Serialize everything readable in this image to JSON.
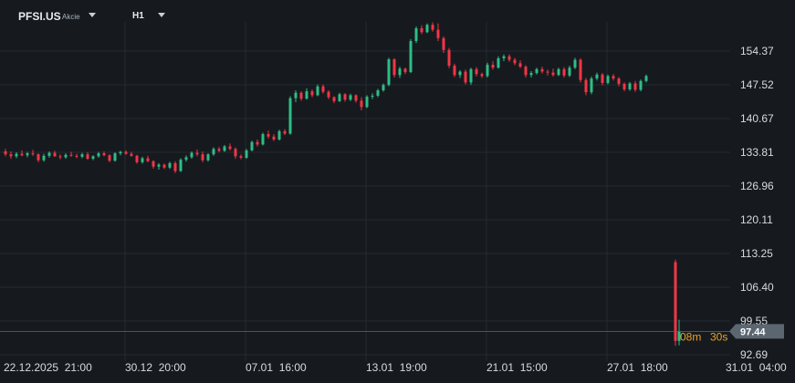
{
  "header": {
    "symbol": "PFSI.US",
    "instrument_type": "Akcie",
    "timeframe": "H1"
  },
  "countdown": {
    "minutes": "08m",
    "seconds": "30s"
  },
  "colors": {
    "background": "#161a1f",
    "grid": "#232a32",
    "up": "#2ebd85",
    "down": "#f23645",
    "text": "#d7dbe0",
    "price_tag": "#5b6670",
    "countdown": "#f0a020"
  },
  "chart_data": {
    "type": "candlestick",
    "title": "",
    "xlabel": "",
    "ylabel": "",
    "y_ticks": [
      "154.37",
      "147.52",
      "140.67",
      "133.81",
      "126.96",
      "120.11",
      "113.25",
      "106.40",
      "99.55",
      "92.69"
    ],
    "y_tick_values": [
      154.37,
      147.52,
      140.67,
      133.81,
      126.96,
      120.11,
      113.25,
      106.4,
      99.55,
      92.69
    ],
    "x_ticks": [
      "22.12.2025  21:00",
      "30.12  20:00",
      "07.01  16:00",
      "13.01  19:00",
      "21.01  15:00",
      "27.01  18:00",
      "31.01  04:00"
    ],
    "current_price": "97.44",
    "current_price_value": 97.44,
    "grid": true,
    "candles": [
      [
        134.0,
        134.5,
        133.0,
        133.4
      ],
      [
        133.4,
        134.0,
        132.5,
        133.0
      ],
      [
        133.0,
        133.8,
        132.6,
        133.5
      ],
      [
        133.5,
        134.2,
        133.0,
        133.2
      ],
      [
        133.2,
        133.9,
        132.8,
        133.6
      ],
      [
        133.6,
        134.3,
        133.1,
        133.4
      ],
      [
        133.4,
        133.6,
        131.8,
        132.2
      ],
      [
        132.2,
        133.5,
        131.9,
        133.1
      ],
      [
        133.1,
        134.0,
        132.7,
        133.7
      ],
      [
        133.7,
        134.1,
        132.9,
        133.0
      ],
      [
        133.0,
        133.4,
        132.4,
        132.8
      ],
      [
        132.8,
        133.6,
        132.5,
        133.3
      ],
      [
        133.3,
        133.9,
        132.9,
        133.1
      ],
      [
        133.1,
        133.5,
        132.6,
        132.9
      ],
      [
        132.9,
        133.7,
        132.6,
        133.4
      ],
      [
        133.4,
        133.8,
        132.3,
        132.5
      ],
      [
        132.5,
        133.2,
        132.2,
        133.0
      ],
      [
        133.0,
        133.9,
        132.7,
        133.6
      ],
      [
        133.6,
        134.0,
        133.0,
        133.2
      ],
      [
        133.2,
        133.4,
        131.8,
        132.1
      ],
      [
        132.1,
        133.8,
        131.9,
        133.6
      ],
      [
        133.6,
        134.1,
        133.2,
        133.9
      ],
      [
        133.9,
        134.2,
        133.3,
        133.5
      ],
      [
        133.5,
        133.9,
        132.9,
        133.1
      ],
      [
        133.1,
        133.3,
        131.5,
        131.8
      ],
      [
        131.8,
        132.9,
        131.5,
        132.6
      ],
      [
        132.6,
        133.1,
        131.8,
        132.0
      ],
      [
        132.0,
        132.2,
        130.5,
        130.9
      ],
      [
        130.9,
        131.6,
        130.3,
        131.3
      ],
      [
        131.3,
        131.5,
        130.4,
        130.7
      ],
      [
        130.7,
        131.9,
        130.4,
        131.6
      ],
      [
        131.6,
        132.0,
        129.6,
        130.0
      ],
      [
        130.0,
        132.6,
        129.8,
        132.3
      ],
      [
        132.3,
        133.2,
        131.9,
        132.8
      ],
      [
        132.8,
        134.0,
        132.5,
        133.7
      ],
      [
        133.7,
        134.4,
        133.0,
        133.4
      ],
      [
        133.4,
        134.0,
        131.8,
        132.2
      ],
      [
        132.2,
        133.6,
        131.9,
        133.4
      ],
      [
        133.4,
        134.8,
        133.1,
        134.5
      ],
      [
        134.5,
        134.9,
        133.8,
        134.1
      ],
      [
        134.1,
        135.3,
        133.9,
        135.0
      ],
      [
        135.0,
        135.6,
        134.2,
        134.5
      ],
      [
        134.5,
        134.8,
        132.5,
        133.0
      ],
      [
        133.0,
        133.4,
        132.4,
        132.7
      ],
      [
        132.7,
        134.5,
        132.5,
        134.2
      ],
      [
        134.2,
        136.2,
        134.0,
        135.9
      ],
      [
        135.9,
        136.4,
        135.0,
        135.4
      ],
      [
        135.4,
        137.8,
        135.2,
        137.5
      ],
      [
        137.5,
        138.2,
        136.6,
        137.0
      ],
      [
        137.0,
        137.5,
        136.1,
        136.4
      ],
      [
        136.4,
        138.4,
        136.2,
        138.1
      ],
      [
        138.1,
        138.5,
        137.3,
        137.6
      ],
      [
        137.6,
        145.2,
        137.4,
        144.8
      ],
      [
        144.8,
        146.4,
        144.0,
        145.9
      ],
      [
        145.9,
        146.2,
        144.3,
        144.7
      ],
      [
        144.7,
        146.8,
        144.5,
        146.2
      ],
      [
        146.2,
        146.6,
        145.0,
        145.4
      ],
      [
        145.4,
        147.6,
        145.2,
        147.2
      ],
      [
        147.2,
        147.6,
        145.7,
        146.1
      ],
      [
        146.1,
        146.4,
        144.6,
        145.0
      ],
      [
        145.0,
        145.2,
        143.8,
        144.2
      ],
      [
        144.2,
        145.9,
        144.0,
        145.6
      ],
      [
        145.6,
        145.8,
        144.1,
        144.5
      ],
      [
        144.5,
        145.7,
        144.2,
        145.4
      ],
      [
        145.4,
        145.6,
        143.9,
        144.3
      ],
      [
        144.3,
        145.0,
        142.3,
        143.0
      ],
      [
        143.0,
        145.4,
        142.8,
        145.1
      ],
      [
        145.1,
        145.8,
        144.6,
        145.3
      ],
      [
        145.3,
        146.7,
        145.0,
        146.4
      ],
      [
        146.4,
        147.8,
        146.1,
        147.5
      ],
      [
        147.5,
        153.0,
        147.2,
        152.7
      ],
      [
        152.7,
        152.9,
        149.0,
        149.5
      ],
      [
        149.5,
        151.2,
        148.9,
        150.8
      ],
      [
        150.8,
        151.0,
        149.7,
        150.1
      ],
      [
        150.1,
        156.8,
        149.9,
        156.4
      ],
      [
        156.4,
        159.4,
        156.0,
        159.0
      ],
      [
        159.0,
        159.6,
        157.8,
        158.2
      ],
      [
        158.2,
        160.0,
        158.0,
        159.7
      ],
      [
        159.7,
        160.2,
        158.3,
        158.7
      ],
      [
        158.7,
        160.0,
        156.4,
        157.0
      ],
      [
        157.0,
        157.3,
        154.0,
        154.6
      ],
      [
        154.6,
        155.0,
        150.9,
        151.4
      ],
      [
        151.4,
        151.8,
        149.1,
        149.5
      ],
      [
        149.5,
        150.5,
        148.9,
        150.2
      ],
      [
        150.2,
        150.6,
        147.6,
        148.0
      ],
      [
        148.0,
        151.0,
        147.5,
        150.7
      ],
      [
        150.7,
        151.1,
        149.2,
        149.7
      ],
      [
        149.7,
        150.0,
        148.9,
        149.3
      ],
      [
        149.3,
        152.0,
        149.0,
        151.6
      ],
      [
        151.6,
        152.3,
        150.6,
        151.0
      ],
      [
        151.0,
        153.3,
        150.8,
        152.9
      ],
      [
        152.9,
        153.7,
        152.3,
        153.3
      ],
      [
        153.3,
        153.7,
        152.2,
        152.6
      ],
      [
        152.6,
        153.0,
        151.5,
        151.9
      ],
      [
        151.9,
        152.5,
        150.9,
        151.2
      ],
      [
        151.2,
        151.5,
        149.0,
        149.5
      ],
      [
        149.5,
        150.3,
        149.0,
        149.9
      ],
      [
        149.9,
        151.0,
        149.6,
        150.7
      ],
      [
        150.7,
        151.2,
        149.8,
        150.2
      ],
      [
        150.2,
        150.6,
        149.4,
        150.0
      ],
      [
        150.0,
        150.8,
        149.2,
        149.5
      ],
      [
        149.5,
        151.0,
        149.3,
        150.7
      ],
      [
        150.7,
        151.1,
        149.0,
        149.4
      ],
      [
        149.4,
        151.4,
        149.1,
        151.0
      ],
      [
        151.0,
        153.0,
        150.7,
        152.6
      ],
      [
        152.6,
        152.9,
        148.0,
        148.5
      ],
      [
        148.5,
        148.9,
        145.4,
        146.0
      ],
      [
        146.0,
        149.2,
        145.6,
        148.8
      ],
      [
        148.8,
        150.0,
        148.4,
        149.6
      ],
      [
        149.6,
        149.9,
        147.4,
        147.9
      ],
      [
        147.9,
        149.6,
        147.6,
        149.3
      ],
      [
        149.3,
        149.7,
        148.4,
        148.8
      ],
      [
        148.8,
        149.1,
        147.2,
        147.7
      ],
      [
        147.7,
        148.0,
        146.2,
        146.6
      ],
      [
        146.6,
        148.1,
        146.3,
        147.8
      ],
      [
        147.8,
        148.3,
        146.1,
        146.5
      ],
      [
        146.5,
        148.6,
        146.2,
        148.3
      ],
      [
        148.3,
        149.6,
        148.0,
        149.3
      ],
      [
        111.5,
        112.0,
        94.5,
        95.5
      ],
      [
        95.5,
        99.8,
        94.6,
        97.44
      ]
    ]
  }
}
